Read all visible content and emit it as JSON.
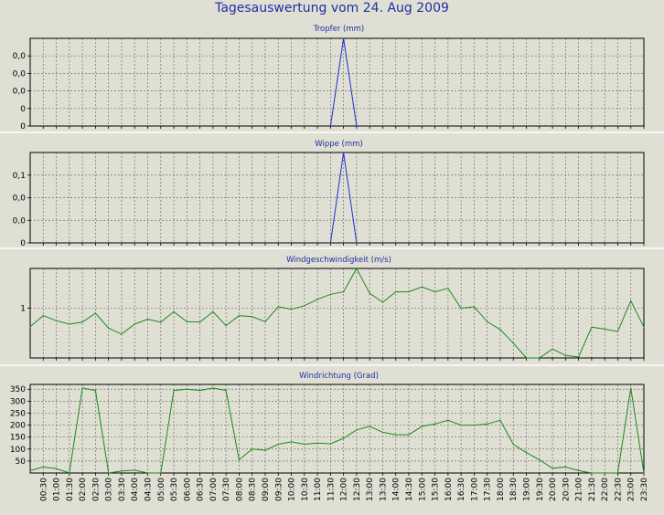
{
  "title": "Tagesauswertung vom 24. Aug 2009",
  "colors": {
    "blue": "#1f2fd0",
    "green": "#1a8a1a",
    "title": "#1f2fa8"
  },
  "x_labels": [
    "00:30",
    "01:00",
    "01:30",
    "02:00",
    "02:30",
    "03:00",
    "03:30",
    "04:00",
    "04:30",
    "05:00",
    "05:30",
    "06:00",
    "06:30",
    "07:00",
    "07:30",
    "08:00",
    "08:30",
    "09:00",
    "09:30",
    "10:00",
    "10:30",
    "11:00",
    "11:30",
    "12:00",
    "12:30",
    "13:00",
    "13:30",
    "14:00",
    "14:30",
    "15:00",
    "15:30",
    "16:00",
    "16:30",
    "17:00",
    "17:30",
    "18:00",
    "18:30",
    "19:00",
    "19:30",
    "20:00",
    "20:30",
    "21:00",
    "21:30",
    "22:00",
    "22:30",
    "23:00",
    "23:30"
  ],
  "chart_data": [
    {
      "type": "line",
      "title": "Tropfer (mm)",
      "ylim": [
        0,
        0.05
      ],
      "yticks": [
        {
          "v": 0,
          "label": "0"
        },
        {
          "v": 0.01,
          "label": "0"
        },
        {
          "v": 0.02,
          "label": "0,0"
        },
        {
          "v": 0.03,
          "label": "0,0"
        },
        {
          "v": 0.04,
          "label": "0,0"
        }
      ],
      "color": "#1f2fd0",
      "grid": true,
      "x": [
        "11:30",
        "12:00",
        "12:30"
      ],
      "values": [
        0,
        0.05,
        0
      ]
    },
    {
      "type": "line",
      "title": "Wippe (mm)",
      "ylim": [
        0,
        0.2
      ],
      "yticks": [
        {
          "v": 0,
          "label": "0"
        },
        {
          "v": 0.05,
          "label": "0,0"
        },
        {
          "v": 0.1,
          "label": "0,0"
        },
        {
          "v": 0.15,
          "label": "0,1"
        }
      ],
      "color": "#1f2fd0",
      "grid": true,
      "x": [
        "11:30",
        "12:00",
        "12:30"
      ],
      "values": [
        0,
        0.2,
        0
      ]
    },
    {
      "type": "line",
      "title": "Windgeschwindigkeit (m/s)",
      "ylim": [
        0,
        1.8
      ],
      "yticks": [
        {
          "v": 1,
          "label": "1"
        }
      ],
      "color": "#1a8a1a",
      "grid": true,
      "x": [
        "00:00",
        "00:30",
        "01:00",
        "01:30",
        "02:00",
        "02:30",
        "03:00",
        "03:30",
        "04:00",
        "04:30",
        "05:00",
        "05:30",
        "06:00",
        "06:30",
        "07:00",
        "07:30",
        "08:00",
        "08:30",
        "09:00",
        "09:30",
        "10:00",
        "10:30",
        "11:00",
        "11:30",
        "12:00",
        "12:30",
        "13:00",
        "13:30",
        "14:00",
        "14:30",
        "15:00",
        "15:30",
        "16:00",
        "16:30",
        "17:00",
        "17:30",
        "18:00",
        "18:30",
        "19:00",
        "19:30",
        "20:00",
        "20:30",
        "21:00",
        "21:30",
        "22:00",
        "22:30",
        "23:00",
        "23:30"
      ],
      "values": [
        0.63,
        0.85,
        0.75,
        0.68,
        0.72,
        0.9,
        0.6,
        0.48,
        0.68,
        0.78,
        0.72,
        0.93,
        0.73,
        0.72,
        0.93,
        0.65,
        0.85,
        0.83,
        0.73,
        1.03,
        0.98,
        1.05,
        1.18,
        1.28,
        1.33,
        1.8,
        1.3,
        1.12,
        1.33,
        1.33,
        1.43,
        1.33,
        1.4,
        1.0,
        1.03,
        0.73,
        0.57,
        0.3,
        0.0,
        0.0,
        0.18,
        0.05,
        0.02,
        0.62,
        0.58,
        0.53,
        1.15,
        0.62
      ]
    },
    {
      "type": "line",
      "title": "Windrichtung (Grad)",
      "ylim": [
        0,
        370
      ],
      "yticks": [
        {
          "v": 50,
          "label": "50"
        },
        {
          "v": 100,
          "label": "100"
        },
        {
          "v": 150,
          "label": "150"
        },
        {
          "v": 200,
          "label": "200"
        },
        {
          "v": 250,
          "label": "250"
        },
        {
          "v": 300,
          "label": "300"
        },
        {
          "v": 350,
          "label": "350"
        }
      ],
      "color": "#1a8a1a",
      "grid": true,
      "x": [
        "00:00",
        "00:30",
        "01:00",
        "01:30",
        "02:00",
        "02:30",
        "03:00",
        "03:30",
        "04:00",
        "04:30",
        "05:00",
        "05:30",
        "06:00",
        "06:30",
        "07:00",
        "07:30",
        "08:00",
        "08:30",
        "09:00",
        "09:30",
        "10:00",
        "10:30",
        "11:00",
        "11:30",
        "12:00",
        "12:30",
        "13:00",
        "13:30",
        "14:00",
        "14:30",
        "15:00",
        "15:30",
        "16:00",
        "16:30",
        "17:00",
        "17:30",
        "18:00",
        "18:30",
        "19:00",
        "19:30",
        "20:00",
        "20:30",
        "21:00",
        "21:30",
        "22:00",
        "22:30",
        "23:00",
        "23:30"
      ],
      "values": [
        10,
        25,
        18,
        0,
        355,
        345,
        0,
        8,
        12,
        0,
        0,
        345,
        350,
        345,
        355,
        345,
        55,
        100,
        95,
        120,
        130,
        120,
        125,
        122,
        145,
        180,
        195,
        170,
        160,
        160,
        195,
        205,
        220,
        200,
        200,
        205,
        220,
        120,
        85,
        55,
        20,
        25,
        10,
        0,
        0,
        0,
        355,
        0
      ]
    }
  ]
}
